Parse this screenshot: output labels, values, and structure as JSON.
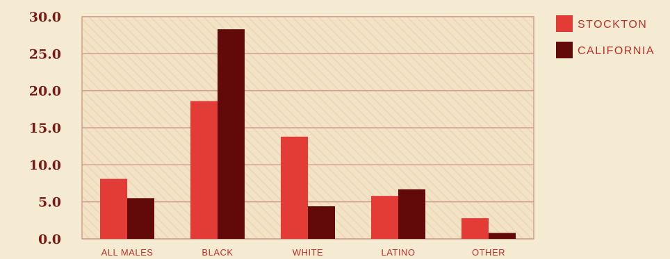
{
  "chart_data": {
    "type": "bar",
    "title": "",
    "xlabel": "",
    "ylabel": "",
    "categories": [
      "ALL MALES",
      "BLACK",
      "WHITE",
      "LATINO",
      "OTHER"
    ],
    "series": [
      {
        "name": "STOCKTON",
        "color": "#e33b36",
        "values": [
          8.1,
          18.6,
          13.8,
          5.8,
          2.8
        ]
      },
      {
        "name": "CALIFORNIA",
        "color": "#620a0a",
        "values": [
          5.5,
          28.3,
          4.4,
          6.7,
          0.8
        ]
      }
    ],
    "yticks": [
      "0.0",
      "5.0",
      "10.0",
      "15.0",
      "20.0",
      "25.0",
      "30.0"
    ],
    "ylim": [
      0,
      30
    ],
    "grid": true,
    "legend": "top-right"
  }
}
